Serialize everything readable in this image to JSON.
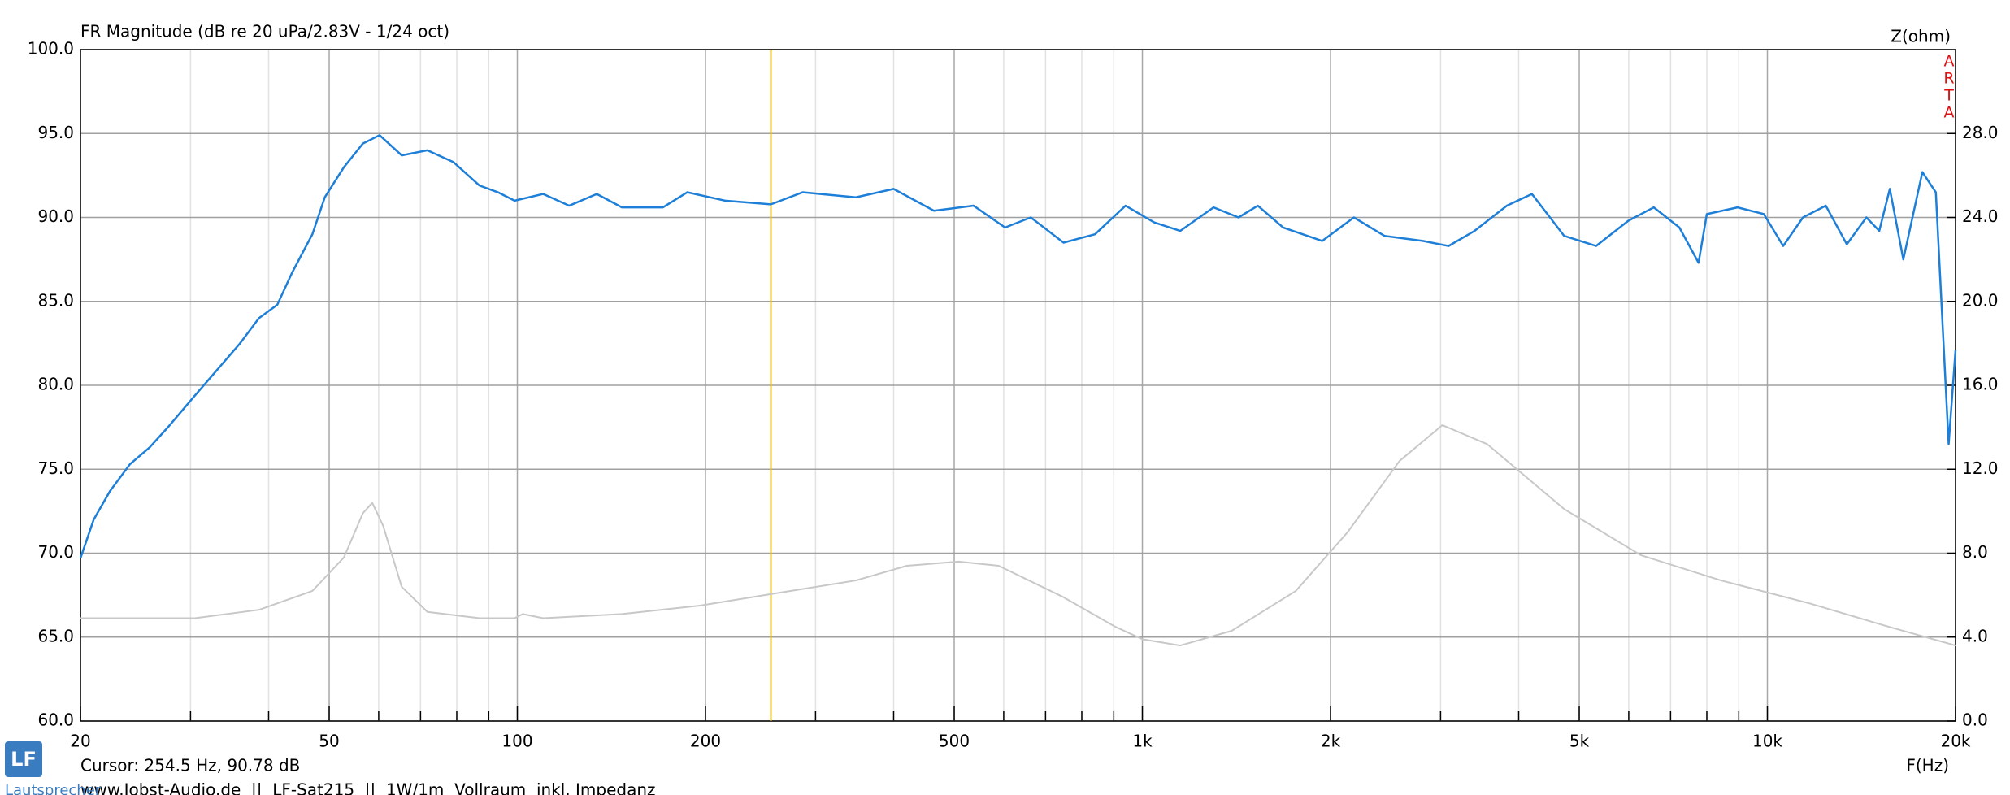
{
  "chart_data": {
    "type": "line",
    "title": "FR Magnitude (dB re 20 uPa/2.83V - 1/24 oct)",
    "y2_label": "Z(ohm)",
    "x_label": "F(Hz)",
    "brand": [
      "A",
      "R",
      "T",
      "A"
    ],
    "cursor": {
      "x": 254.5,
      "label": "Cursor: 254.5 Hz, 90.78 dB",
      "color": "#e8c020"
    },
    "footer": "www.Jobst-Audio.de  ||  LF-Sat215  ||  1W/1m  Vollraum  inkl. Impedanz",
    "logo": {
      "mark": "LF",
      "text": "Lautsprecher"
    },
    "xscale": "log",
    "xlim": [
      20,
      20000
    ],
    "xticks": [
      20,
      50,
      100,
      200,
      500,
      {
        "value": 1000,
        "label": "1k"
      },
      {
        "value": 2000,
        "label": "2k"
      },
      {
        "value": 5000,
        "label": "5k"
      },
      {
        "value": 10000,
        "label": "10k"
      },
      {
        "value": 20000,
        "label": "20k"
      }
    ],
    "xminorticks": [
      30,
      40,
      60,
      70,
      80,
      90,
      300,
      400,
      600,
      700,
      800,
      900,
      3000,
      4000,
      6000,
      7000,
      8000,
      9000
    ],
    "ylim": [
      60,
      100
    ],
    "yticks": [
      {
        "value": 60,
        "label": "60.0"
      },
      {
        "value": 65,
        "label": "65.0"
      },
      {
        "value": 70,
        "label": "70.0"
      },
      {
        "value": 75,
        "label": "75.0"
      },
      {
        "value": 80,
        "label": "80.0"
      },
      {
        "value": 85,
        "label": "85.0"
      },
      {
        "value": 90,
        "label": "90.0"
      },
      {
        "value": 95,
        "label": "95.0"
      },
      {
        "value": 100,
        "label": "100.0"
      }
    ],
    "y2lim": [
      0,
      32
    ],
    "y2ticks": [
      {
        "value": 0,
        "label": "0.0"
      },
      {
        "value": 4,
        "label": "4.0"
      },
      {
        "value": 8,
        "label": "8.0"
      },
      {
        "value": 12,
        "label": "12.0"
      },
      {
        "value": 16,
        "label": "16.0"
      },
      {
        "value": 20,
        "label": "20.0"
      },
      {
        "value": 24,
        "label": "24.0"
      },
      {
        "value": 28,
        "label": "28.0"
      }
    ],
    "grid": true,
    "series": [
      {
        "color": "#1e7fd8",
        "x": [
          20,
          21,
          22.3,
          24,
          25.8,
          27.6,
          30.5,
          32.7,
          36,
          38.6,
          41.3,
          43.6,
          47,
          49.2,
          52.8,
          56.6,
          60.2,
          65.3,
          71.8,
          79,
          87,
          93.1,
          99,
          110,
          121,
          134,
          147,
          171,
          187,
          215,
          254.5,
          286,
          348,
          400,
          464,
          537,
          603,
          663,
          748,
          840,
          940,
          1045,
          1150,
          1300,
          1425,
          1530,
          1680,
          1940,
          2180,
          2440,
          2810,
          3090,
          3400,
          3830,
          4200,
          4730,
          5320,
          5990,
          6580,
          7230,
          7760,
          8000,
          8960,
          9870,
          10600,
          11400,
          12400,
          13400,
          14400,
          15100,
          15700,
          16500,
          17700,
          18600,
          19500,
          20000
        ],
        "values": [
          69.7,
          72.0,
          73.7,
          75.3,
          76.3,
          77.5,
          79.4,
          80.7,
          82.5,
          84.0,
          84.8,
          86.7,
          89.0,
          91.2,
          93.0,
          94.4,
          94.9,
          93.7,
          94.0,
          93.3,
          91.9,
          91.5,
          91.0,
          91.4,
          90.7,
          91.4,
          90.6,
          90.6,
          91.5,
          91.0,
          90.78,
          91.5,
          91.2,
          91.7,
          90.4,
          90.7,
          89.4,
          90.0,
          88.5,
          89.0,
          90.7,
          89.7,
          89.2,
          90.6,
          90.0,
          90.7,
          89.4,
          88.6,
          90.0,
          88.9,
          88.6,
          88.3,
          89.2,
          90.7,
          91.4,
          88.9,
          88.3,
          89.8,
          90.6,
          89.4,
          87.3,
          90.2,
          90.6,
          90.2,
          88.3,
          90.0,
          90.7,
          88.4,
          90.0,
          89.2,
          91.7,
          87.5,
          92.7,
          91.5,
          76.5,
          82.1
        ]
      },
      {
        "color": "#c8c8c8",
        "axis": "y2",
        "x": [
          20,
          30.5,
          38.6,
          47,
          52.8,
          56.6,
          58.6,
          61,
          65.3,
          71.8,
          87,
          99,
          102,
          110,
          147,
          196,
          261,
          348,
          420,
          508,
          589,
          748,
          904,
          1000,
          1150,
          1390,
          1760,
          2130,
          2580,
          3020,
          3560,
          4730,
          6280,
          8430,
          11700,
          15600,
          20000
        ],
        "values": [
          4.9,
          4.9,
          5.3,
          6.2,
          7.8,
          9.9,
          10.4,
          9.3,
          6.4,
          5.2,
          4.9,
          4.9,
          5.1,
          4.9,
          5.1,
          5.5,
          6.1,
          6.7,
          7.4,
          7.6,
          7.4,
          5.9,
          4.5,
          3.9,
          3.6,
          4.3,
          6.2,
          9.0,
          12.4,
          14.1,
          13.2,
          10.1,
          7.9,
          6.7,
          5.6,
          4.5,
          3.6
        ]
      }
    ]
  }
}
